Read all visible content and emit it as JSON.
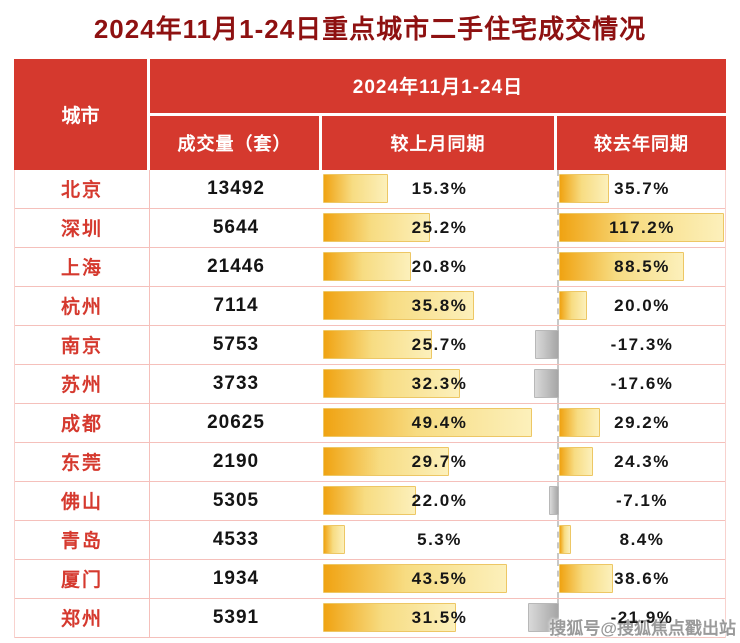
{
  "title": "2024年11月1-24日重点城市二手住宅成交情况",
  "table": {
    "city_header": "城市",
    "period_header": "2024年11月1-24日",
    "columns": [
      "成交量（套）",
      "较上月同期",
      "较去年同期"
    ]
  },
  "watermark": "搜狐号@搜狐焦点戳出站",
  "colors": {
    "header_bg": "#d5392e",
    "title_text": "#8e1111",
    "city_text": "#d5392e",
    "row_border": "#f5c0bb",
    "bar_positive": "#f0a312",
    "bar_positive_light": "#fcf0bb",
    "bar_negative": "#a6a6a6",
    "zero_axis_dash": "#c8c8c8"
  },
  "chart_data": {
    "type": "table",
    "title": "2024年11月1-24日重点城市二手住宅成交情况",
    "columns": [
      "城市",
      "成交量（套）",
      "较上月同期",
      "较去年同期"
    ],
    "categories": [
      "北京",
      "深圳",
      "上海",
      "杭州",
      "南京",
      "苏州",
      "成都",
      "东莞",
      "佛山",
      "青岛",
      "厦门",
      "郑州"
    ],
    "series": [
      {
        "name": "成交量（套）",
        "unit": "套",
        "values": [
          13492,
          5644,
          21446,
          7114,
          5753,
          3733,
          20625,
          2190,
          5305,
          4533,
          1934,
          5391
        ]
      },
      {
        "name": "较上月同期",
        "unit": "%",
        "bar_style": "yellow-gradient",
        "values": [
          15.3,
          25.2,
          20.8,
          35.8,
          25.7,
          32.3,
          49.4,
          29.7,
          22.0,
          5.3,
          43.5,
          31.5
        ]
      },
      {
        "name": "较去年同期",
        "unit": "%",
        "bar_style": "yellow-gradient-positive-gray-negative",
        "values": [
          35.7,
          117.2,
          88.5,
          20.0,
          -17.3,
          -17.6,
          29.2,
          24.3,
          -7.1,
          8.4,
          38.6,
          -21.9
        ]
      }
    ],
    "layout": {
      "bars_embedded_in_table": true,
      "zero_axis": "dashed vertical line at left edge of 较去年同期 column",
      "negative_bars_extend_left": true
    }
  }
}
